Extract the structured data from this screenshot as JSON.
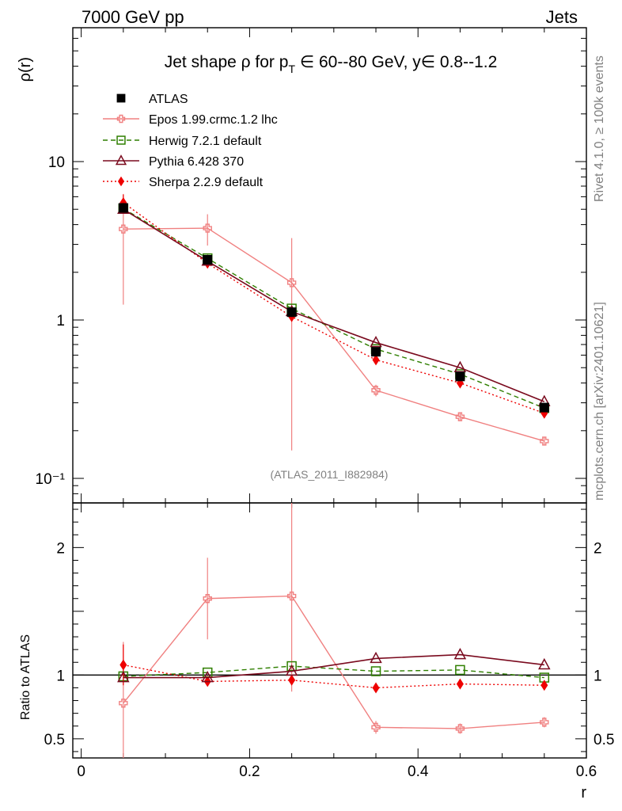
{
  "header": {
    "left": "7000 GeV pp",
    "right": "Jets"
  },
  "side_labels": {
    "rivet": "Rivet 4.1.0, ≥ 100k events",
    "mcplots": "mcplots.cern.ch [arXiv:2401.10621]"
  },
  "watermark": "(ATLAS_2011_I882984)",
  "colors": {
    "atlas": "#000000",
    "epos": "#f08080",
    "herwig": "#2f7f00",
    "pythia": "#7a0a1e",
    "sherpa": "#ee0000"
  },
  "chart_data": [
    {
      "type": "line",
      "panel": "main",
      "title_parts": {
        "prefix": "Jet shape ρ for p",
        "subscript": "T",
        "suffix": " ∈ 60--80 GeV, y∈ 0.8--1.2"
      },
      "ylabel": "ρ(r)",
      "yscale": "log",
      "ylim": [
        0.07,
        70
      ],
      "xlim": [
        -0.01,
        0.6
      ],
      "x": [
        0.05,
        0.15,
        0.25,
        0.35,
        0.45,
        0.55
      ],
      "y_ticks": [
        {
          "value": 10,
          "label": "10"
        },
        {
          "value": 1,
          "label": "1"
        },
        {
          "value": 0.1,
          "label": "10⁻¹"
        }
      ],
      "series": [
        {
          "name": "ATLAS",
          "key": "atlas",
          "values": [
            5.1,
            2.4,
            1.12,
            0.63,
            0.44,
            0.28
          ],
          "err": [
            0,
            0,
            0,
            0,
            0,
            0
          ]
        },
        {
          "name": "Epos 1.99.crmc.1.2 lhc",
          "key": "epos",
          "values": [
            3.75,
            3.8,
            1.72,
            0.36,
            0.245,
            0.172
          ],
          "err": [
            2.5,
            0.85,
            1.57,
            0.03,
            0.015,
            0.01
          ]
        },
        {
          "name": "Herwig 7.2.1 default",
          "key": "herwig",
          "values": [
            5.05,
            2.45,
            1.18,
            0.655,
            0.455,
            0.278
          ],
          "err": [
            0,
            0,
            0,
            0,
            0,
            0
          ]
        },
        {
          "name": "Pythia 6.428 370",
          "key": "pythia",
          "values": [
            5.0,
            2.35,
            1.13,
            0.72,
            0.5,
            0.305
          ],
          "err": [
            0,
            0,
            0,
            0,
            0,
            0
          ]
        },
        {
          "name": "Sherpa 2.2.9 default",
          "key": "sherpa",
          "values": [
            5.5,
            2.28,
            1.05,
            0.56,
            0.4,
            0.258
          ],
          "err": [
            0.7,
            0.1,
            0.06,
            0.025,
            0.015,
            0.01
          ]
        }
      ]
    },
    {
      "type": "line",
      "panel": "ratio",
      "ylabel": "Ratio to ATLAS",
      "xlabel": "r",
      "ylim": [
        0.35,
        2.35
      ],
      "xlim": [
        -0.01,
        0.6
      ],
      "x": [
        0.05,
        0.15,
        0.25,
        0.35,
        0.45,
        0.55
      ],
      "x_ticks": [
        {
          "value": 0,
          "label": "0"
        },
        {
          "value": 0.2,
          "label": "0.2"
        },
        {
          "value": 0.4,
          "label": "0.4"
        },
        {
          "value": 0.6,
          "label": "0.6"
        }
      ],
      "y_ticks": [
        {
          "value": 2,
          "label": "2"
        },
        {
          "value": 1,
          "label": "1"
        },
        {
          "value": 0.5,
          "label": "0.5"
        }
      ],
      "series": [
        {
          "name": "Epos 1.99.crmc.1.2 lhc",
          "key": "epos",
          "values": [
            0.78,
            1.6,
            1.62,
            0.59,
            0.58,
            0.63
          ],
          "err": [
            0.48,
            0.32,
            0.75,
            0.05,
            0.04,
            0.04
          ]
        },
        {
          "name": "Herwig 7.2.1 default",
          "key": "herwig",
          "values": [
            0.99,
            1.02,
            1.07,
            1.03,
            1.04,
            0.98
          ],
          "err": [
            0,
            0,
            0,
            0,
            0,
            0
          ]
        },
        {
          "name": "Pythia 6.428 370",
          "key": "pythia",
          "values": [
            0.98,
            0.98,
            1.03,
            1.13,
            1.16,
            1.08
          ],
          "err": [
            0,
            0,
            0,
            0,
            0,
            0
          ]
        },
        {
          "name": "Sherpa 2.2.9 default",
          "key": "sherpa",
          "values": [
            1.08,
            0.95,
            0.96,
            0.9,
            0.93,
            0.92
          ],
          "err": [
            0.16,
            0,
            0,
            0,
            0,
            0
          ]
        }
      ]
    }
  ]
}
